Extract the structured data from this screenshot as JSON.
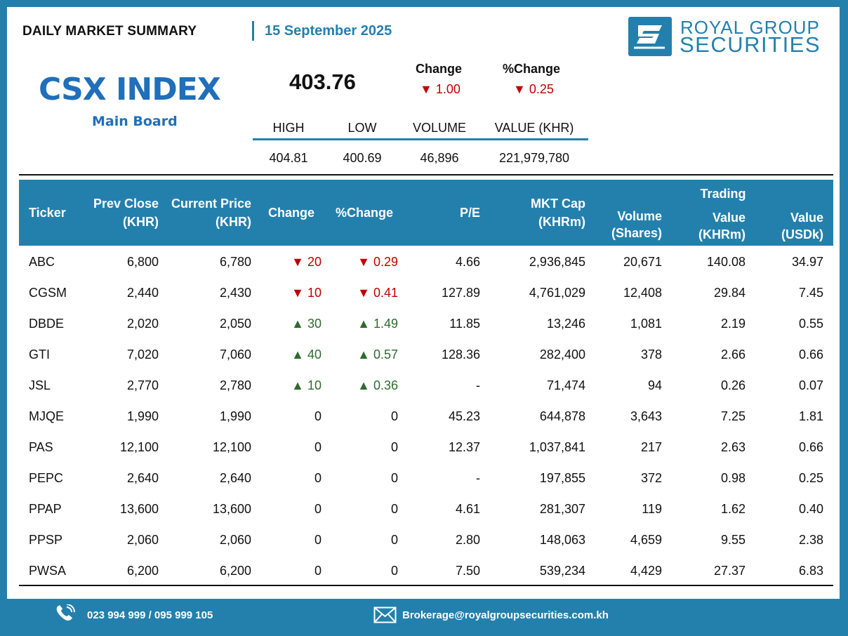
{
  "header": {
    "title": "DAILY MARKET SUMMARY",
    "date": "15 September 2025"
  },
  "logo": {
    "line1": "ROYAL GROUP",
    "line2": "SECURITIES",
    "brand_color": "#2380ad"
  },
  "index": {
    "name": "CSX INDEX",
    "board": "Main Board",
    "value": "403.76",
    "change_label": "Change",
    "change_value": "▼ 1.00",
    "pct_change_label": "%Change",
    "pct_change_value": "▼ 0.25",
    "stats_headers": [
      "HIGH",
      "LOW",
      "VOLUME",
      "VALUE (KHR)"
    ],
    "stats_values": [
      "404.81",
      "400.69",
      "46,896",
      "221,979,780"
    ]
  },
  "table": {
    "headers": {
      "ticker": "Ticker",
      "prev_close_1": "Prev Close",
      "prev_close_2": "(KHR)",
      "current_price_1": "Current Price",
      "current_price_2": "(KHR)",
      "change": "Change",
      "pct_change": "%Change",
      "pe": "P/E",
      "mkt_cap_1": "MKT Cap",
      "mkt_cap_2": "(KHRm)",
      "volume_1": "Volume",
      "volume_2": "(Shares)",
      "trading": "Trading",
      "value_khr_1": "Value",
      "value_khr_2": "(KHRm)",
      "value_usd_1": "Value",
      "value_usd_2": "(USDk)"
    },
    "rows": [
      {
        "ticker": "ABC",
        "prev": "6,800",
        "cur": "6,780",
        "chg": "▼ 20",
        "pct": "▼ 0.29",
        "dir": "down",
        "pe": "4.66",
        "cap": "2,936,845",
        "vol": "20,671",
        "vkhr": "140.08",
        "vusd": "34.97"
      },
      {
        "ticker": "CGSM",
        "prev": "2,440",
        "cur": "2,430",
        "chg": "▼ 10",
        "pct": "▼ 0.41",
        "dir": "down",
        "pe": "127.89",
        "cap": "4,761,029",
        "vol": "12,408",
        "vkhr": "29.84",
        "vusd": "7.45"
      },
      {
        "ticker": "DBDE",
        "prev": "2,020",
        "cur": "2,050",
        "chg": "▲ 30",
        "pct": "▲ 1.49",
        "dir": "up",
        "pe": "11.85",
        "cap": "13,246",
        "vol": "1,081",
        "vkhr": "2.19",
        "vusd": "0.55"
      },
      {
        "ticker": "GTI",
        "prev": "7,020",
        "cur": "7,060",
        "chg": "▲ 40",
        "pct": "▲ 0.57",
        "dir": "up",
        "pe": "128.36",
        "cap": "282,400",
        "vol": "378",
        "vkhr": "2.66",
        "vusd": "0.66"
      },
      {
        "ticker": "JSL",
        "prev": "2,770",
        "cur": "2,780",
        "chg": "▲ 10",
        "pct": "▲ 0.36",
        "dir": "up",
        "pe": "-",
        "cap": "71,474",
        "vol": "94",
        "vkhr": "0.26",
        "vusd": "0.07"
      },
      {
        "ticker": "MJQE",
        "prev": "1,990",
        "cur": "1,990",
        "chg": "0",
        "pct": "0",
        "dir": "flat",
        "pe": "45.23",
        "cap": "644,878",
        "vol": "3,643",
        "vkhr": "7.25",
        "vusd": "1.81"
      },
      {
        "ticker": "PAS",
        "prev": "12,100",
        "cur": "12,100",
        "chg": "0",
        "pct": "0",
        "dir": "flat",
        "pe": "12.37",
        "cap": "1,037,841",
        "vol": "217",
        "vkhr": "2.63",
        "vusd": "0.66"
      },
      {
        "ticker": "PEPC",
        "prev": "2,640",
        "cur": "2,640",
        "chg": "0",
        "pct": "0",
        "dir": "flat",
        "pe": "-",
        "cap": "197,855",
        "vol": "372",
        "vkhr": "0.98",
        "vusd": "0.25"
      },
      {
        "ticker": "PPAP",
        "prev": "13,600",
        "cur": "13,600",
        "chg": "0",
        "pct": "0",
        "dir": "flat",
        "pe": "4.61",
        "cap": "281,307",
        "vol": "119",
        "vkhr": "1.62",
        "vusd": "0.40"
      },
      {
        "ticker": "PPSP",
        "prev": "2,060",
        "cur": "2,060",
        "chg": "0",
        "pct": "0",
        "dir": "flat",
        "pe": "2.80",
        "cap": "148,063",
        "vol": "4,659",
        "vkhr": "9.55",
        "vusd": "2.38"
      },
      {
        "ticker": "PWSA",
        "prev": "6,200",
        "cur": "6,200",
        "chg": "0",
        "pct": "0",
        "dir": "flat",
        "pe": "7.50",
        "cap": "539,234",
        "vol": "4,429",
        "vkhr": "27.37",
        "vusd": "6.83"
      }
    ],
    "colors": {
      "down": "#c00000",
      "up": "#2e6b2e"
    }
  },
  "footer": {
    "phone": "023 994 999 / 095 999 105",
    "phone_icon": "phone-icon",
    "email": "Brokerage@royalgroupsecurities.com.kh",
    "email_icon": "mail-icon"
  }
}
